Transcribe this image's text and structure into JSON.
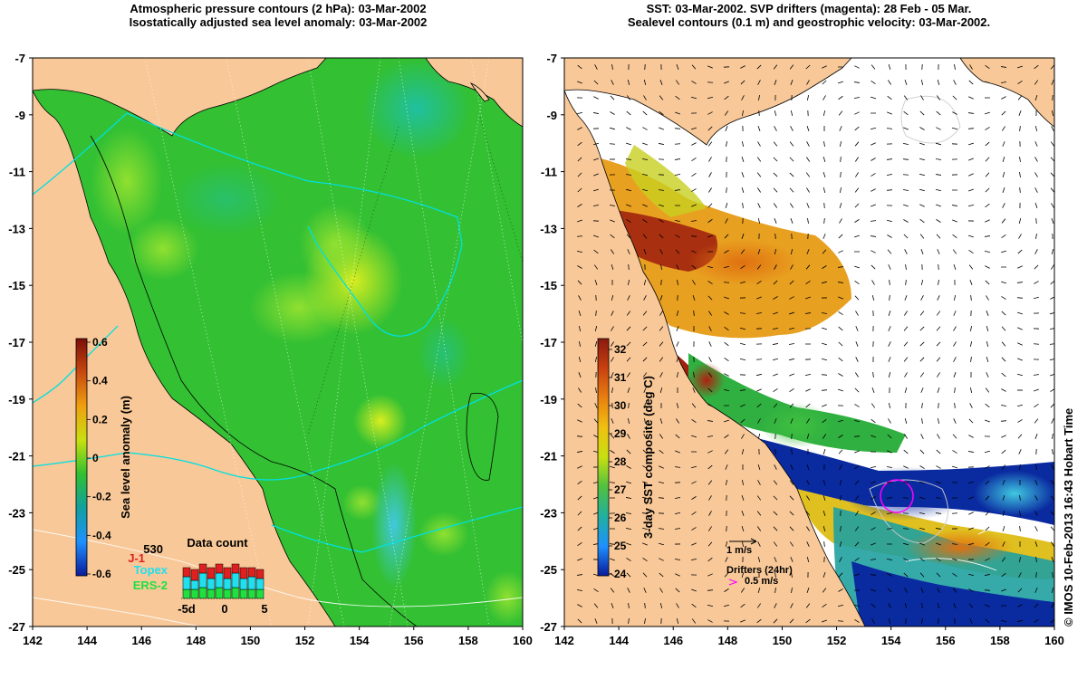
{
  "left_panel": {
    "title_line1": "Atmospheric pressure contours (2 hPa): 03-Mar-2002",
    "title_line2": "Isostatically adjusted sea level anomaly: 03-Mar-2002",
    "colorbar": {
      "label": "Sea level anomaly (m)",
      "ticks": [
        "0.6",
        "0.4",
        "0.2",
        "0",
        "-0.2",
        "-0.4",
        "-0.6"
      ],
      "gradient": [
        "#7b0e08",
        "#c84a10",
        "#f0a010",
        "#c8e010",
        "#30c030",
        "#10a0a0",
        "#1e90ff",
        "#0a1a9a"
      ]
    },
    "legend": {
      "count": "530",
      "sat_j1": "J-1",
      "sat_topex": "Topex",
      "sat_ers2": "ERS-2",
      "data_count_label": "Data count",
      "xticks": [
        "-5d",
        "0",
        "5"
      ]
    }
  },
  "right_panel": {
    "title_line1": "SST: 03-Mar-2002. SVP drifters (magenta): 28 Feb - 05 Mar.",
    "title_line2": "Sealevel contours (0.1 m) and geostrophic velocity: 03-Mar-2002.",
    "colorbar": {
      "label": "3-day SST composite (deg C)",
      "ticks": [
        "32",
        "31",
        "30",
        "29",
        "28",
        "27",
        "26",
        "25",
        "24"
      ],
      "gradient": [
        "#8a1a10",
        "#c84010",
        "#e88010",
        "#f0c010",
        "#c8e010",
        "#50c040",
        "#20b0a0",
        "#1e90ff",
        "#0a1a9a"
      ]
    },
    "scale_arrow_label": "1 m/s",
    "drifters_label": "Drifters (24hr)",
    "drifters_speed": "0.5 m/s"
  },
  "axes": {
    "lon_ticks": [
      "142",
      "144",
      "146",
      "148",
      "150",
      "152",
      "154",
      "156",
      "158",
      "160"
    ],
    "lat_ticks": [
      "-7",
      "-9",
      "-11",
      "-13",
      "-15",
      "-17",
      "-19",
      "-21",
      "-23",
      "-25",
      "-27"
    ],
    "lon_range": [
      142,
      160
    ],
    "lat_range": [
      -27,
      -7
    ]
  },
  "credit": "© IMOS 10-Feb-2013 16:43 Hobart Time",
  "colors": {
    "land": "#f8c898",
    "ocean_left": "#33c033",
    "magenta": "#ff00ff",
    "cyan": "#00e0e0"
  }
}
